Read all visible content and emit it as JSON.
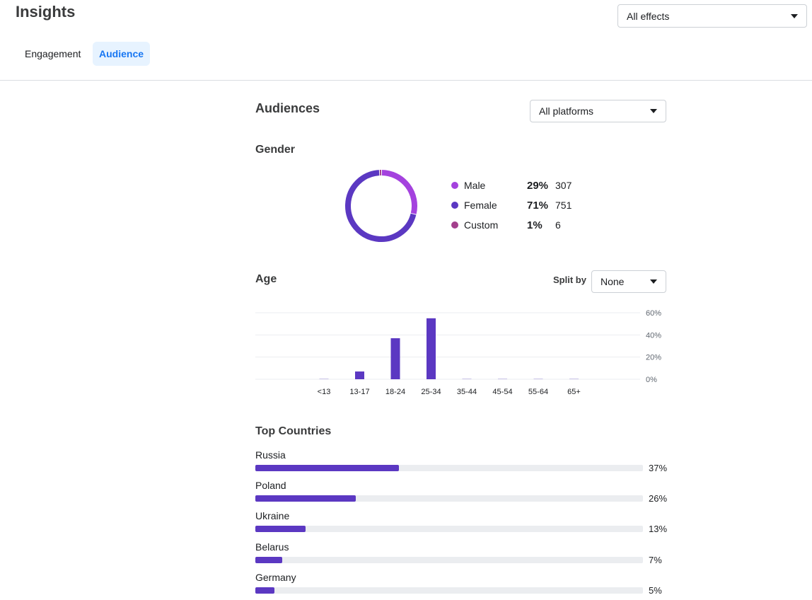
{
  "header": {
    "title": "Insights",
    "effects_select": "All effects",
    "tabs": [
      {
        "label": "Engagement",
        "active": false
      },
      {
        "label": "Audience",
        "active": true
      }
    ]
  },
  "audiences": {
    "title": "Audiences",
    "platform_select": "All platforms"
  },
  "gender": {
    "title": "Gender",
    "items": [
      {
        "label": "Male",
        "pct": "29%",
        "count": "307",
        "color": "#a442de"
      },
      {
        "label": "Female",
        "pct": "71%",
        "count": "751",
        "color": "#5b38c2"
      },
      {
        "label": "Custom",
        "pct": "1%",
        "count": "6",
        "color": "#a33f8c"
      }
    ]
  },
  "age": {
    "title": "Age",
    "split_label": "Split by",
    "split_value": "None"
  },
  "chart_data": {
    "type": "bar",
    "categories": [
      "<13",
      "13-17",
      "18-24",
      "25-34",
      "35-44",
      "45-54",
      "55-64",
      "65+"
    ],
    "values": [
      0.3,
      7,
      37,
      55,
      0.5,
      0.5,
      0.3,
      0.3
    ],
    "ylim": [
      0,
      60
    ],
    "yticks": [
      "60%",
      "40%",
      "20%",
      "0%"
    ],
    "ytick_values": [
      60,
      40,
      20,
      0
    ],
    "bar_color": "#5b38c2",
    "title": "",
    "xlabel": "",
    "ylabel": ""
  },
  "countries": {
    "title": "Top Countries",
    "items": [
      {
        "name": "Russia",
        "pct": "37%",
        "value": 37
      },
      {
        "name": "Poland",
        "pct": "26%",
        "value": 26
      },
      {
        "name": "Ukraine",
        "pct": "13%",
        "value": 13
      },
      {
        "name": "Belarus",
        "pct": "7%",
        "value": 7
      },
      {
        "name": "Germany",
        "pct": "5%",
        "value": 5
      }
    ]
  }
}
